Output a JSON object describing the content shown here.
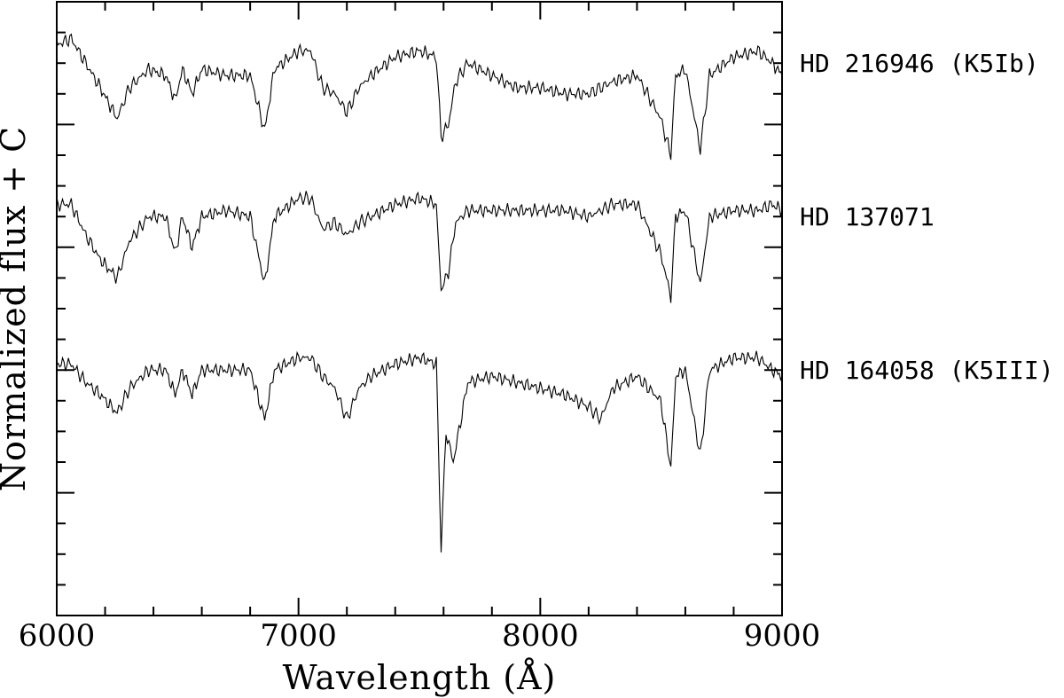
{
  "chart_data": {
    "type": "line",
    "title": "",
    "xlabel": "Wavelength (Å)",
    "ylabel": "Normalized flux + C",
    "xlim": [
      6000,
      9000
    ],
    "ylim": [
      0,
      1
    ],
    "x_ticks": [
      "6000",
      "7000",
      "8000",
      "9000"
    ],
    "grid": false,
    "legend": "labels beside each spectrum at right",
    "series": [
      {
        "name": "HD 216946 (K5Ib)",
        "offset": 0.9,
        "points": [
          [
            6000,
            0.93
          ],
          [
            6060,
            0.94
          ],
          [
            6120,
            0.9
          ],
          [
            6180,
            0.86
          ],
          [
            6250,
            0.81
          ],
          [
            6300,
            0.86
          ],
          [
            6380,
            0.89
          ],
          [
            6450,
            0.88
          ],
          [
            6490,
            0.84
          ],
          [
            6520,
            0.89
          ],
          [
            6560,
            0.85
          ],
          [
            6600,
            0.89
          ],
          [
            6700,
            0.88
          ],
          [
            6800,
            0.88
          ],
          [
            6860,
            0.79
          ],
          [
            6900,
            0.89
          ],
          [
            7000,
            0.92
          ],
          [
            7050,
            0.92
          ],
          [
            7100,
            0.86
          ],
          [
            7150,
            0.85
          ],
          [
            7200,
            0.82
          ],
          [
            7250,
            0.86
          ],
          [
            7300,
            0.88
          ],
          [
            7400,
            0.91
          ],
          [
            7500,
            0.92
          ],
          [
            7570,
            0.91
          ],
          [
            7590,
            0.78
          ],
          [
            7620,
            0.8
          ],
          [
            7650,
            0.87
          ],
          [
            7700,
            0.9
          ],
          [
            7800,
            0.88
          ],
          [
            7900,
            0.86
          ],
          [
            8000,
            0.86
          ],
          [
            8100,
            0.85
          ],
          [
            8200,
            0.85
          ],
          [
            8250,
            0.86
          ],
          [
            8300,
            0.87
          ],
          [
            8400,
            0.88
          ],
          [
            8498,
            0.81
          ],
          [
            8540,
            0.75
          ],
          [
            8560,
            0.88
          ],
          [
            8600,
            0.89
          ],
          [
            8662,
            0.76
          ],
          [
            8700,
            0.88
          ],
          [
            8800,
            0.91
          ],
          [
            8900,
            0.92
          ],
          [
            8960,
            0.9
          ],
          [
            9000,
            0.88
          ]
        ]
      },
      {
        "name": "HD 137071",
        "offset": 0.65,
        "points": [
          [
            6000,
            0.67
          ],
          [
            6060,
            0.67
          ],
          [
            6120,
            0.62
          ],
          [
            6180,
            0.58
          ],
          [
            6250,
            0.55
          ],
          [
            6300,
            0.61
          ],
          [
            6380,
            0.65
          ],
          [
            6450,
            0.65
          ],
          [
            6490,
            0.59
          ],
          [
            6520,
            0.65
          ],
          [
            6560,
            0.6
          ],
          [
            6600,
            0.65
          ],
          [
            6700,
            0.66
          ],
          [
            6800,
            0.65
          ],
          [
            6860,
            0.54
          ],
          [
            6900,
            0.65
          ],
          [
            7000,
            0.68
          ],
          [
            7050,
            0.68
          ],
          [
            7100,
            0.63
          ],
          [
            7150,
            0.64
          ],
          [
            7200,
            0.62
          ],
          [
            7250,
            0.64
          ],
          [
            7300,
            0.65
          ],
          [
            7400,
            0.67
          ],
          [
            7500,
            0.68
          ],
          [
            7570,
            0.67
          ],
          [
            7590,
            0.53
          ],
          [
            7620,
            0.56
          ],
          [
            7650,
            0.64
          ],
          [
            7700,
            0.66
          ],
          [
            7800,
            0.66
          ],
          [
            7900,
            0.66
          ],
          [
            8000,
            0.66
          ],
          [
            8100,
            0.66
          ],
          [
            8200,
            0.65
          ],
          [
            8250,
            0.66
          ],
          [
            8300,
            0.67
          ],
          [
            8400,
            0.67
          ],
          [
            8498,
            0.59
          ],
          [
            8540,
            0.52
          ],
          [
            8560,
            0.65
          ],
          [
            8600,
            0.66
          ],
          [
            8662,
            0.54
          ],
          [
            8700,
            0.65
          ],
          [
            8800,
            0.66
          ],
          [
            8900,
            0.66
          ],
          [
            8960,
            0.67
          ],
          [
            9000,
            0.66
          ]
        ]
      },
      {
        "name": "HD 164058 (K5III)",
        "offset": 0.4,
        "points": [
          [
            6000,
            0.41
          ],
          [
            6060,
            0.41
          ],
          [
            6120,
            0.38
          ],
          [
            6180,
            0.36
          ],
          [
            6250,
            0.33
          ],
          [
            6300,
            0.37
          ],
          [
            6380,
            0.4
          ],
          [
            6450,
            0.4
          ],
          [
            6490,
            0.36
          ],
          [
            6520,
            0.4
          ],
          [
            6560,
            0.36
          ],
          [
            6600,
            0.4
          ],
          [
            6700,
            0.4
          ],
          [
            6800,
            0.4
          ],
          [
            6860,
            0.32
          ],
          [
            6900,
            0.4
          ],
          [
            7000,
            0.42
          ],
          [
            7050,
            0.42
          ],
          [
            7100,
            0.39
          ],
          [
            7150,
            0.37
          ],
          [
            7200,
            0.32
          ],
          [
            7250,
            0.37
          ],
          [
            7300,
            0.39
          ],
          [
            7400,
            0.41
          ],
          [
            7500,
            0.42
          ],
          [
            7570,
            0.41
          ],
          [
            7590,
            0.11
          ],
          [
            7610,
            0.3
          ],
          [
            7640,
            0.25
          ],
          [
            7700,
            0.38
          ],
          [
            7800,
            0.39
          ],
          [
            7900,
            0.38
          ],
          [
            8000,
            0.37
          ],
          [
            8100,
            0.36
          ],
          [
            8200,
            0.34
          ],
          [
            8250,
            0.32
          ],
          [
            8300,
            0.37
          ],
          [
            8400,
            0.39
          ],
          [
            8498,
            0.35
          ],
          [
            8540,
            0.24
          ],
          [
            8560,
            0.39
          ],
          [
            8600,
            0.4
          ],
          [
            8662,
            0.26
          ],
          [
            8700,
            0.4
          ],
          [
            8800,
            0.42
          ],
          [
            8900,
            0.42
          ],
          [
            8960,
            0.4
          ],
          [
            9000,
            0.39
          ]
        ]
      }
    ]
  }
}
